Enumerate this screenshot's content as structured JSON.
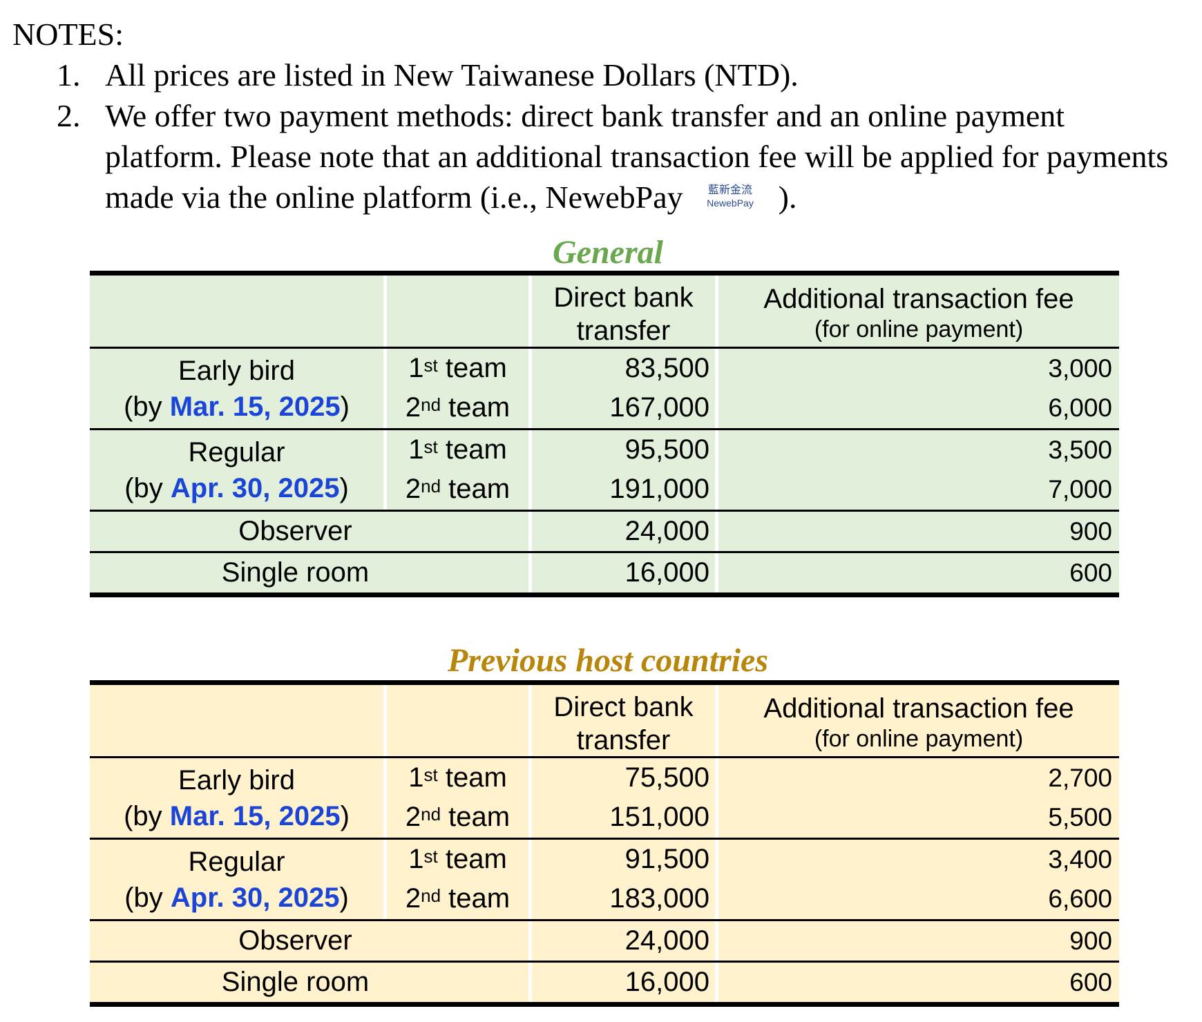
{
  "notes": {
    "title": "NOTES:",
    "items": [
      {
        "num": "1.",
        "text": "All prices are listed in New Taiwanese Dollars (NTD)."
      },
      {
        "num": "2.",
        "text_a": "We offer two payment methods: direct bank transfer and an online payment platform. Please note that an additional transaction fee will be applied for payments made via the online platform (i.e., NewebPay",
        "text_b": ")."
      }
    ],
    "logo": {
      "cn": "藍新金流",
      "en": "NewebPay"
    }
  },
  "headers": {
    "direct_1": "Direct bank",
    "direct_2": "transfer",
    "fee_1": "Additional transaction fee",
    "fee_2": "(for online payment)"
  },
  "labels": {
    "early_bird": "Early bird",
    "regular": "Regular",
    "by_open": "(by ",
    "by_close": ")",
    "early_date": "Mar. 15, 2025",
    "regular_date": "Apr. 30, 2025",
    "first": "1",
    "first_sup": "st",
    "second": "2",
    "second_sup": "nd",
    "team": " team",
    "observer": "Observer",
    "single_room": "Single room"
  },
  "tables": {
    "general": {
      "caption": "General",
      "early_1": {
        "direct": "83,500",
        "fee": "3,000"
      },
      "early_2": {
        "direct": "167,000",
        "fee": "6,000"
      },
      "regular_1": {
        "direct": "95,500",
        "fee": "3,500"
      },
      "regular_2": {
        "direct": "191,000",
        "fee": "7,000"
      },
      "observer": {
        "direct": "24,000",
        "fee": "900"
      },
      "single": {
        "direct": "16,000",
        "fee": "600"
      }
    },
    "previous": {
      "caption": "Previous host countries",
      "early_1": {
        "direct": "75,500",
        "fee": "2,700"
      },
      "early_2": {
        "direct": "151,000",
        "fee": "5,500"
      },
      "regular_1": {
        "direct": "91,500",
        "fee": "3,400"
      },
      "regular_2": {
        "direct": "183,000",
        "fee": "6,600"
      },
      "observer": {
        "direct": "24,000",
        "fee": "900"
      },
      "single": {
        "direct": "16,000",
        "fee": "600"
      }
    }
  },
  "colors": {
    "general_caption": "#6aa84f",
    "general_bg": "#e2efda",
    "previous_caption": "#b8860b",
    "previous_bg": "#fff2cc",
    "date_blue": "#1a45d6"
  }
}
